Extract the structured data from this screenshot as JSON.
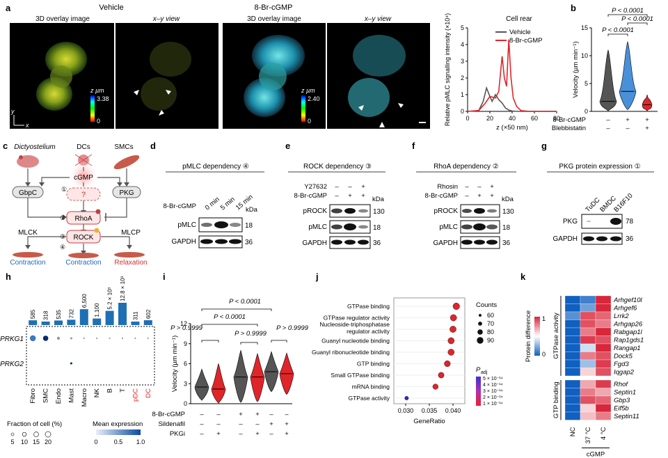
{
  "a": {
    "letter": "a",
    "vehicle": "Vehicle",
    "drug": "8-Br-cGMP",
    "overlay": "3D overlay image",
    "xy": "x–y view",
    "zunit": "z µm",
    "zmax1": "3.38",
    "zmax2": "2.40",
    "zero": "0",
    "axis_y": "y",
    "axis_x": "x",
    "chart_data": {
      "type": "line",
      "title": "Cell rear",
      "xlabel": "z (×50 nm)",
      "ylabel": "Relative pMLC signalling intensity (×10⁴)",
      "xlim": [
        0,
        80
      ],
      "ylim": [
        0,
        5
      ],
      "xticks": [
        "0",
        "20",
        "40",
        "60",
        "80"
      ],
      "yticks": [
        "0",
        "1",
        "2",
        "3",
        "4",
        "5"
      ],
      "legend": "top-right",
      "series": [
        {
          "name": "Vehicle",
          "color": "#555555",
          "x": [
            0,
            10,
            14,
            17,
            20,
            22,
            25,
            28,
            31,
            34,
            37,
            40,
            45,
            50,
            60,
            80
          ],
          "y": [
            0,
            0.05,
            0.6,
            1.4,
            0.9,
            0.6,
            1.0,
            0.7,
            0.5,
            0.2,
            0.08,
            0.02,
            0,
            0,
            0,
            0
          ]
        },
        {
          "name": "8-Br-cGMP",
          "color": "#e0252a",
          "x": [
            0,
            10,
            16,
            20,
            25,
            28,
            31,
            33,
            35,
            37,
            39,
            41,
            44,
            48,
            55,
            80
          ],
          "y": [
            0,
            0.05,
            0.5,
            0.9,
            0.8,
            1.2,
            3.3,
            2.0,
            1.5,
            4.3,
            2.0,
            0.8,
            0.3,
            0.05,
            0,
            0
          ]
        }
      ]
    }
  },
  "b": {
    "letter": "b",
    "chart_data": {
      "type": "violin",
      "ylabel": "Velocity (µm min⁻¹)",
      "ylim": [
        0,
        15
      ],
      "yticks": [
        "0",
        "5",
        "10",
        "15"
      ],
      "conditions": {
        "row1_label": "8-Br-cGMP",
        "row1": [
          "–",
          "+",
          "+"
        ],
        "row2_label": "Blebbistatin",
        "row2": [
          "–",
          "–",
          "+"
        ]
      },
      "groups": [
        {
          "color": "#555555",
          "median": 1.8,
          "max": 11,
          "min": 0.1
        },
        {
          "color": "#4a90d9",
          "median": 3.6,
          "max": 12.5,
          "min": 0.3
        },
        {
          "color": "#e0252a",
          "median": 1.2,
          "max": 3,
          "min": 0.1
        }
      ],
      "stats": [
        "P < 0.0001",
        "P < 0.0001",
        "P < 0.0001"
      ]
    }
  },
  "c": {
    "letter": "c",
    "dicty": "Dictyostelium",
    "dcs": "DCs",
    "smcs": "SMCs",
    "cgmp": "cGMP",
    "gbpc": "GbpC",
    "pkg": "PKG",
    "q": "?",
    "rhoa": "RhoA",
    "rock": "ROCK",
    "mlck": "MLCK",
    "mlcp": "MLCP",
    "contraction": "Contraction",
    "relaxation": "Relaxation",
    "n1": "①",
    "n2": "②",
    "n3": "③",
    "n4": "④"
  },
  "d": {
    "letter": "d",
    "title": "pMLC dependency ④",
    "treat": "8-Br-cGMP",
    "lanes": [
      "0 min",
      "5 min",
      "15 min"
    ],
    "kda": "kDa",
    "rows": [
      {
        "name": "pMLC",
        "kda": "18"
      },
      {
        "name": "GAPDH",
        "kda": "36"
      }
    ]
  },
  "e": {
    "letter": "e",
    "title": "ROCK dependency ③",
    "row1_label": "Y27632",
    "row1": [
      "–",
      "–",
      "+"
    ],
    "row2_label": "8-Br-cGMP",
    "row2": [
      "–",
      "+",
      "+"
    ],
    "kda": "kDa",
    "rows": [
      {
        "name": "pROCK",
        "kda": "130"
      },
      {
        "name": "pMLC",
        "kda": "18"
      },
      {
        "name": "GAPDH",
        "kda": "36"
      }
    ]
  },
  "f": {
    "letter": "f",
    "title": "RhoA dependency ②",
    "row1_label": "Rhosin",
    "row1": [
      "–",
      "–",
      "+"
    ],
    "row2_label": "8-Br-cGMP",
    "row2": [
      "–",
      "+",
      "+"
    ],
    "kda": "kDa",
    "rows": [
      {
        "name": "pROCK",
        "kda": "130"
      },
      {
        "name": "pMLC",
        "kda": "18"
      },
      {
        "name": "GAPDH",
        "kda": "36"
      }
    ]
  },
  "g": {
    "letter": "g",
    "title": "PKG protein expression ①",
    "lanes": [
      "TuDC",
      "BMDC",
      "B16F10"
    ],
    "rows": [
      {
        "name": "PKG",
        "kda": "78"
      },
      {
        "name": "GAPDH",
        "kda": "36"
      }
    ]
  },
  "h": {
    "letter": "h",
    "chart_data": {
      "type": "dotplot",
      "cells": [
        "Fibro",
        "SMC",
        "Endo",
        "Mast",
        "Macro",
        "NK",
        "B",
        "T",
        "pDC",
        "DC"
      ],
      "cell_colors": [
        "#000",
        "#000",
        "#000",
        "#000",
        "#000",
        "#000",
        "#000",
        "#000",
        "#e0252a",
        "#e0252a"
      ],
      "counts": [
        "585",
        "318",
        "535",
        "732",
        "6,500",
        "1,100",
        "5.2 × 10³",
        "12.8 × 10³",
        "311",
        "602"
      ],
      "count_values": [
        585,
        318,
        535,
        732,
        6500,
        1100,
        5200,
        12800,
        311,
        602
      ],
      "genes": [
        "PRKG1",
        "PRKG2"
      ],
      "fraction_pct": [
        [
          15,
          12,
          4,
          2,
          1,
          1,
          1,
          1,
          1,
          1
        ],
        [
          0,
          0,
          0,
          2,
          0,
          0,
          0,
          0,
          0,
          0
        ]
      ],
      "mean_expr": [
        [
          0.5,
          1.0,
          0.2,
          0.1,
          0.1,
          0.1,
          0.1,
          0.1,
          0.1,
          0.1
        ],
        [
          0,
          0,
          0,
          0.9,
          0,
          0,
          0,
          0,
          0,
          0
        ]
      ],
      "size_legend_title": "Fraction of cell (%)",
      "size_legend": [
        "5",
        "10",
        "15",
        "20"
      ],
      "color_legend_title": "Mean expression",
      "color_legend_ticks": [
        "0",
        "0.5",
        "1.0"
      ]
    }
  },
  "i": {
    "letter": "i",
    "chart_data": {
      "type": "violin",
      "ylabel": "Velocity (µm min⁻¹)",
      "ylim": [
        0,
        12
      ],
      "yticks": [
        "0",
        "3",
        "6",
        "9",
        "12"
      ],
      "conditions": {
        "row1_label": "8-Br-cGMP",
        "row1": [
          "–",
          "–",
          "+",
          "+",
          "–",
          "–"
        ],
        "row2_label": "Sildenafil",
        "row2": [
          "–",
          "–",
          "–",
          "–",
          "+",
          "+"
        ],
        "row3_label": "PKGi",
        "row3": [
          "–",
          "+",
          "–",
          "+",
          "–",
          "+"
        ]
      },
      "groups": [
        {
          "color": "#555555",
          "median": 2.5,
          "max": 5.2,
          "min": 0.5
        },
        {
          "color": "#e0252a",
          "median": 2.2,
          "max": 6.0,
          "min": 0.1
        },
        {
          "color": "#555555",
          "median": 4.0,
          "max": 8.0,
          "min": 0.2
        },
        {
          "color": "#e0252a",
          "median": 4.0,
          "max": 7.5,
          "min": 0.3
        },
        {
          "color": "#555555",
          "median": 4.8,
          "max": 7.8,
          "min": 1.8
        },
        {
          "color": "#e0252a",
          "median": 4.5,
          "max": 7.6,
          "min": 1.4
        }
      ],
      "stats": [
        "P < 0.0001",
        "P < 0.0001",
        "P > 0.9999",
        "P > 0.9999",
        "P > 0.9999"
      ]
    }
  },
  "j": {
    "letter": "j",
    "chart_data": {
      "type": "scatter",
      "xlabel": "GeneRatio",
      "xlim": [
        0.0275,
        0.0425
      ],
      "xticks": [
        "0.030",
        "0.035",
        "0.040"
      ],
      "terms": [
        "GTPase binding",
        "GTPase regulator activity",
        "Nucleoside-triphosphatase regulator activity",
        "Guanyl nucleotide binding",
        "Guanyl ribonucleotide binding",
        "GTP binding",
        "Small GTPase binding",
        "mRNA binding",
        "GTPase activity"
      ],
      "gene_ratio": [
        0.0407,
        0.0401,
        0.04,
        0.0396,
        0.0396,
        0.0388,
        0.0375,
        0.0363,
        0.0302
      ],
      "counts": [
        91,
        89,
        89,
        88,
        88,
        86,
        84,
        81,
        68
      ],
      "padj_color": [
        "#e0252a",
        "#e0252a",
        "#e0252a",
        "#e0252a",
        "#e0252a",
        "#e0252a",
        "#e0252a",
        "#e0252a",
        "#2a2ad0"
      ],
      "size_legend_title": "Counts",
      "size_legend": [
        "60",
        "70",
        "80",
        "90"
      ],
      "color_legend_title": "P",
      "color_legend_sub": "adj",
      "color_legend": [
        "5 × 10⁻¹⁴",
        "4 × 10⁻¹⁴",
        "3 × 10⁻¹⁴",
        "2 × 10⁻¹⁴",
        "1 × 10⁻¹⁴"
      ]
    }
  },
  "k": {
    "letter": "k",
    "chart_data": {
      "type": "heatmap",
      "columns": [
        "NC",
        "37 °C",
        "4 °C"
      ],
      "cgmp": "cGMP",
      "legend_title": "Protein difference",
      "legend_ticks": [
        "1",
        "0"
      ],
      "group1": "GTPase activity",
      "group2": "GTP binding",
      "genes": [
        "Arhgef10l",
        "Arhgef6",
        "Lrrk2",
        "Arhgap26",
        "Rabgap1l",
        "Rap1gds1",
        "Rangap1",
        "Dock5",
        "Fgd3",
        "Iqgap2",
        "Rhof",
        "Septin1",
        "Gbp3",
        "Eif5b",
        "Septin11"
      ],
      "values": [
        [
          0,
          0.1,
          1
        ],
        [
          0,
          0.2,
          1
        ],
        [
          0.15,
          0.9,
          0.85
        ],
        [
          0,
          0.9,
          0.8
        ],
        [
          0,
          0.8,
          1
        ],
        [
          0,
          0.95,
          0.9
        ],
        [
          0,
          0.4,
          1
        ],
        [
          0,
          0.8,
          0.9
        ],
        [
          0,
          0.3,
          0.95
        ],
        [
          0,
          0.6,
          0.9
        ],
        [
          0,
          0.7,
          0.95
        ],
        [
          0,
          0.8,
          0.7
        ],
        [
          0,
          0.9,
          0.85
        ],
        [
          0,
          0.6,
          1
        ],
        [
          0,
          0.65,
          0.8
        ]
      ]
    }
  }
}
